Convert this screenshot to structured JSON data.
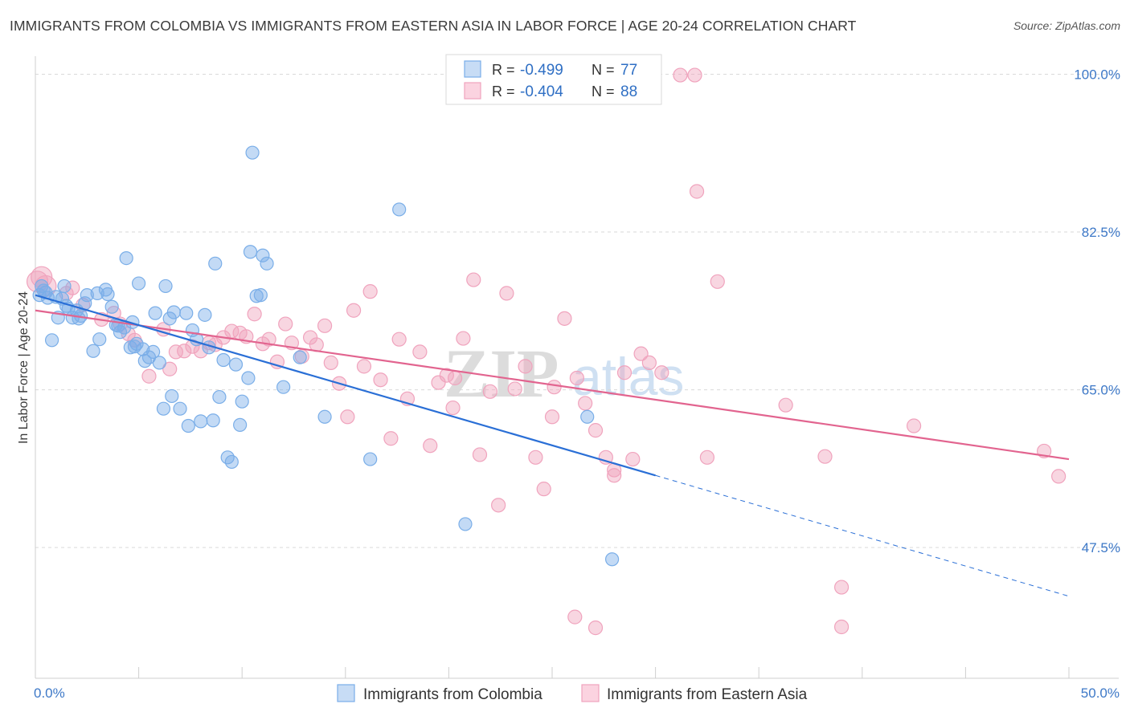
{
  "title": "IMMIGRANTS FROM COLOMBIA VS IMMIGRANTS FROM EASTERN ASIA IN LABOR FORCE | AGE 20-24 CORRELATION CHART",
  "source": "Source: ZipAtlas.com",
  "watermark": {
    "zip": "ZIP",
    "atlas": "atlas"
  },
  "colors": {
    "blue": "#7aaee8",
    "blue_line": "#2a6fd6",
    "pink": "#f0a3bd",
    "pink_line": "#e2648f",
    "tick": "#3d78c7"
  },
  "legend": {
    "rows": [
      {
        "r_label": "R = ",
        "r_value": "-0.499",
        "n_label": "N = ",
        "n_value": "77"
      },
      {
        "r_label": "R = ",
        "r_value": "-0.404",
        "n_label": "N = ",
        "n_value": "88"
      }
    ]
  },
  "chart_data": {
    "type": "scatter",
    "title": "IMMIGRANTS FROM COLOMBIA VS IMMIGRANTS FROM EASTERN ASIA IN LABOR FORCE | AGE 20-24 CORRELATION CHART",
    "xlabel": "",
    "ylabel": "In Labor Force | Age 20-24",
    "xlim": [
      0,
      50
    ],
    "ylim": [
      33,
      102
    ],
    "x_tick_labels": [
      "0.0%",
      "50.0%"
    ],
    "y_ticks": [
      47.5,
      65.0,
      82.5,
      100.0
    ],
    "y_tick_labels": [
      "47.5%",
      "65.0%",
      "82.5%",
      "100.0%"
    ],
    "grid": true,
    "legend_position": "top-center",
    "series": [
      {
        "name": "Immigrants from Colombia",
        "color": "#7aaee8",
        "points": [
          [
            0.2,
            75.5
          ],
          [
            0.3,
            76.5
          ],
          [
            0.5,
            75.8
          ],
          [
            0.6,
            75.2
          ],
          [
            0.8,
            70.5
          ],
          [
            1.0,
            75.3
          ],
          [
            1.1,
            73.0
          ],
          [
            1.3,
            75.1
          ],
          [
            1.4,
            76.5
          ],
          [
            1.6,
            74.0
          ],
          [
            1.8,
            73.0
          ],
          [
            2.0,
            73.8
          ],
          [
            2.2,
            73.2
          ],
          [
            2.4,
            74.6
          ],
          [
            2.5,
            75.5
          ],
          [
            2.8,
            69.3
          ],
          [
            3.0,
            75.7
          ],
          [
            3.1,
            70.6
          ],
          [
            3.4,
            76.1
          ],
          [
            3.5,
            75.6
          ],
          [
            3.7,
            74.2
          ],
          [
            4.0,
            72.1
          ],
          [
            4.1,
            71.4
          ],
          [
            4.3,
            71.9
          ],
          [
            4.4,
            79.6
          ],
          [
            4.6,
            69.7
          ],
          [
            4.7,
            72.5
          ],
          [
            4.9,
            70.1
          ],
          [
            5.0,
            76.8
          ],
          [
            5.2,
            69.5
          ],
          [
            5.3,
            68.2
          ],
          [
            5.5,
            68.6
          ],
          [
            5.7,
            69.2
          ],
          [
            5.8,
            73.5
          ],
          [
            6.0,
            68.0
          ],
          [
            6.2,
            62.9
          ],
          [
            6.3,
            76.5
          ],
          [
            6.5,
            72.9
          ],
          [
            6.6,
            64.3
          ],
          [
            6.7,
            73.6
          ],
          [
            7.0,
            62.9
          ],
          [
            7.3,
            73.5
          ],
          [
            7.4,
            61.0
          ],
          [
            7.6,
            71.6
          ],
          [
            7.8,
            70.6
          ],
          [
            8.0,
            61.5
          ],
          [
            8.2,
            73.3
          ],
          [
            8.4,
            69.7
          ],
          [
            8.6,
            61.6
          ],
          [
            8.7,
            79.0
          ],
          [
            8.9,
            64.2
          ],
          [
            9.1,
            68.3
          ],
          [
            9.3,
            57.5
          ],
          [
            9.5,
            57.0
          ],
          [
            9.7,
            67.8
          ],
          [
            9.9,
            61.1
          ],
          [
            10.0,
            63.7
          ],
          [
            10.3,
            66.3
          ],
          [
            10.4,
            80.3
          ],
          [
            10.5,
            91.3
          ],
          [
            10.7,
            75.4
          ],
          [
            10.9,
            75.5
          ],
          [
            11.0,
            79.9
          ],
          [
            11.2,
            79.0
          ],
          [
            12.0,
            65.3
          ],
          [
            12.8,
            68.6
          ],
          [
            14.0,
            62.0
          ],
          [
            16.2,
            57.3
          ],
          [
            17.6,
            85.0
          ],
          [
            20.8,
            50.1
          ],
          [
            26.7,
            62.0
          ],
          [
            27.9,
            46.2
          ],
          [
            3.9,
            72.2
          ],
          [
            1.5,
            74.3
          ],
          [
            2.1,
            72.9
          ],
          [
            4.8,
            69.8
          ],
          [
            0.4,
            76.0
          ]
        ],
        "trend": {
          "x0": 0,
          "y0": 75.5,
          "x1": 30,
          "y1": 55.5,
          "dashed_to": [
            50,
            42.1
          ]
        }
      },
      {
        "name": "Immigrants from Eastern Asia",
        "color": "#f0a3bd",
        "points": [
          [
            0.1,
            77.0
          ],
          [
            0.3,
            77.5
          ],
          [
            0.5,
            76.5
          ],
          [
            1.5,
            75.7
          ],
          [
            1.8,
            76.3
          ],
          [
            2.3,
            74.4
          ],
          [
            3.2,
            72.8
          ],
          [
            3.8,
            73.5
          ],
          [
            4.1,
            72.3
          ],
          [
            4.5,
            71.2
          ],
          [
            4.8,
            70.5
          ],
          [
            5.5,
            66.5
          ],
          [
            6.2,
            71.7
          ],
          [
            6.5,
            67.3
          ],
          [
            6.8,
            69.2
          ],
          [
            7.2,
            69.3
          ],
          [
            7.6,
            69.8
          ],
          [
            8.0,
            69.3
          ],
          [
            8.4,
            70.2
          ],
          [
            8.7,
            70.0
          ],
          [
            9.1,
            70.8
          ],
          [
            9.5,
            71.5
          ],
          [
            9.9,
            71.3
          ],
          [
            10.2,
            70.9
          ],
          [
            10.6,
            73.4
          ],
          [
            11.0,
            70.1
          ],
          [
            11.3,
            70.6
          ],
          [
            11.7,
            68.1
          ],
          [
            12.1,
            72.3
          ],
          [
            12.4,
            70.2
          ],
          [
            12.9,
            68.7
          ],
          [
            13.3,
            70.8
          ],
          [
            13.6,
            70.0
          ],
          [
            14.0,
            72.1
          ],
          [
            14.3,
            68.0
          ],
          [
            14.7,
            65.7
          ],
          [
            15.1,
            62.0
          ],
          [
            15.4,
            73.8
          ],
          [
            15.9,
            67.6
          ],
          [
            16.2,
            75.9
          ],
          [
            16.7,
            66.1
          ],
          [
            17.2,
            59.6
          ],
          [
            17.6,
            70.6
          ],
          [
            18.0,
            64.0
          ],
          [
            18.6,
            69.2
          ],
          [
            19.1,
            58.8
          ],
          [
            19.5,
            65.8
          ],
          [
            19.9,
            66.6
          ],
          [
            20.3,
            66.3
          ],
          [
            20.7,
            70.7
          ],
          [
            21.2,
            77.2
          ],
          [
            21.5,
            57.8
          ],
          [
            22.0,
            64.8
          ],
          [
            22.4,
            52.2
          ],
          [
            22.8,
            75.7
          ],
          [
            23.2,
            65.1
          ],
          [
            23.7,
            67.6
          ],
          [
            24.2,
            57.5
          ],
          [
            24.6,
            54.0
          ],
          [
            25.1,
            65.3
          ],
          [
            25.6,
            72.9
          ],
          [
            26.2,
            66.3
          ],
          [
            26.6,
            63.5
          ],
          [
            27.1,
            60.5
          ],
          [
            27.6,
            57.5
          ],
          [
            28.0,
            56.1
          ],
          [
            28.5,
            66.9
          ],
          [
            28.9,
            57.3
          ],
          [
            29.3,
            69.0
          ],
          [
            29.7,
            68.0
          ],
          [
            30.3,
            66.9
          ],
          [
            31.2,
            99.9
          ],
          [
            31.9,
            99.9
          ],
          [
            32.0,
            87.0
          ],
          [
            32.5,
            57.5
          ],
          [
            33.0,
            77.0
          ],
          [
            36.3,
            63.3
          ],
          [
            38.2,
            57.6
          ],
          [
            39.0,
            38.7
          ],
          [
            39.0,
            43.1
          ],
          [
            28.0,
            55.5
          ],
          [
            27.1,
            38.6
          ],
          [
            42.5,
            61.0
          ],
          [
            48.8,
            58.2
          ],
          [
            49.5,
            55.4
          ],
          [
            20.2,
            63.0
          ],
          [
            26.1,
            39.8
          ],
          [
            25.0,
            62.0
          ]
        ],
        "trend": {
          "x0": 0,
          "y0": 73.8,
          "x1": 50,
          "y1": 57.3
        }
      }
    ]
  },
  "bottom_legend": [
    {
      "label": "Immigrants from Colombia",
      "color": "#7aaee8"
    },
    {
      "label": "Immigrants from Eastern Asia",
      "color": "#f0a3bd"
    }
  ]
}
